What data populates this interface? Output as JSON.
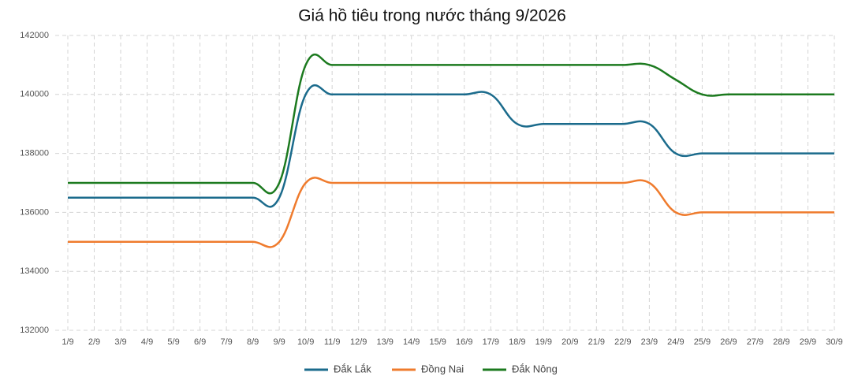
{
  "chart_data": {
    "type": "line",
    "title": "Giá hồ tiêu trong nước tháng 9/2026",
    "categories": [
      "1/9",
      "2/9",
      "3/9",
      "4/9",
      "5/9",
      "6/9",
      "7/9",
      "8/9",
      "9/9",
      "10/9",
      "11/9",
      "12/9",
      "13/9",
      "14/9",
      "15/9",
      "16/9",
      "17/9",
      "18/9",
      "19/9",
      "20/9",
      "21/9",
      "22/9",
      "23/9",
      "24/9",
      "25/9",
      "26/9",
      "27/9",
      "28/9",
      "29/9",
      "30/9"
    ],
    "series": [
      {
        "name": "Đắk Lắk",
        "color": "#1b6b8c",
        "values": [
          136500,
          136500,
          136500,
          136500,
          136500,
          136500,
          136500,
          136500,
          136500,
          140000,
          140000,
          140000,
          140000,
          140000,
          140000,
          140000,
          140000,
          139000,
          139000,
          139000,
          139000,
          139000,
          139000,
          138000,
          138000,
          138000,
          138000,
          138000,
          138000,
          138000
        ]
      },
      {
        "name": "Đồng Nai",
        "color": "#ef7b2d",
        "values": [
          135000,
          135000,
          135000,
          135000,
          135000,
          135000,
          135000,
          135000,
          135000,
          137000,
          137000,
          137000,
          137000,
          137000,
          137000,
          137000,
          137000,
          137000,
          137000,
          137000,
          137000,
          137000,
          137000,
          136000,
          136000,
          136000,
          136000,
          136000,
          136000,
          136000
        ]
      },
      {
        "name": "Đắk Nông",
        "color": "#1c7a1f",
        "values": [
          137000,
          137000,
          137000,
          137000,
          137000,
          137000,
          137000,
          137000,
          137000,
          141000,
          141000,
          141000,
          141000,
          141000,
          141000,
          141000,
          141000,
          141000,
          141000,
          141000,
          141000,
          141000,
          141000,
          140500,
          140000,
          140000,
          140000,
          140000,
          140000,
          140000
        ]
      }
    ],
    "ylim": [
      132000,
      142000
    ],
    "yticks": [
      132000,
      134000,
      136000,
      138000,
      140000,
      142000
    ],
    "grid": true,
    "legend": "bottom"
  }
}
